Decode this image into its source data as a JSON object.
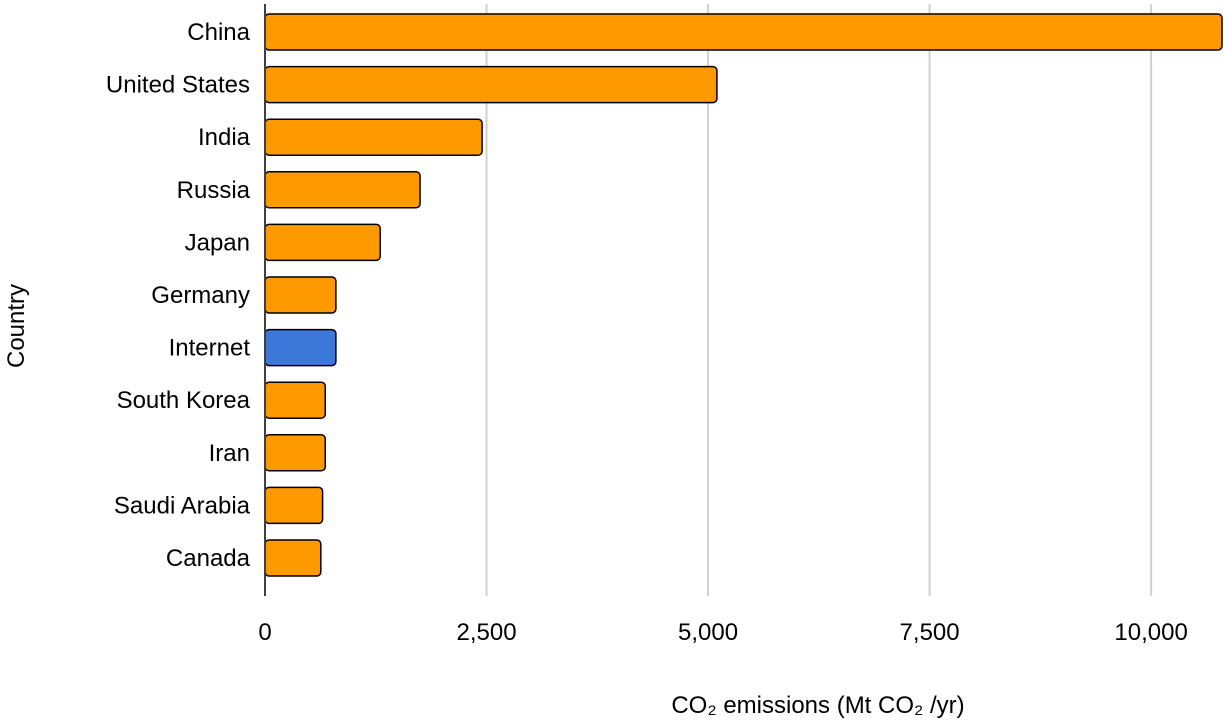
{
  "chart_data": {
    "type": "bar",
    "orientation": "horizontal",
    "categories": [
      "China",
      "United States",
      "India",
      "Russia",
      "Japan",
      "Germany",
      "Internet",
      "South Korea",
      "Iran",
      "Saudi Arabia",
      "Canada"
    ],
    "values": [
      10800,
      5100,
      2450,
      1750,
      1300,
      800,
      800,
      680,
      680,
      650,
      630
    ],
    "highlight_category": "Internet",
    "xlabel": "CO₂ emissions (Mt CO₂ /yr)",
    "ylabel": "Country",
    "xlim": [
      0,
      10800
    ],
    "xticks": [
      0,
      2500,
      5000,
      7500,
      10000
    ],
    "xtick_labels": [
      "0",
      "2,500",
      "5,000",
      "7,500",
      "10,000"
    ],
    "grid": "vertical",
    "colors": {
      "default_bar": "#FF9900",
      "highlight_bar": "#3C78D8"
    }
  }
}
